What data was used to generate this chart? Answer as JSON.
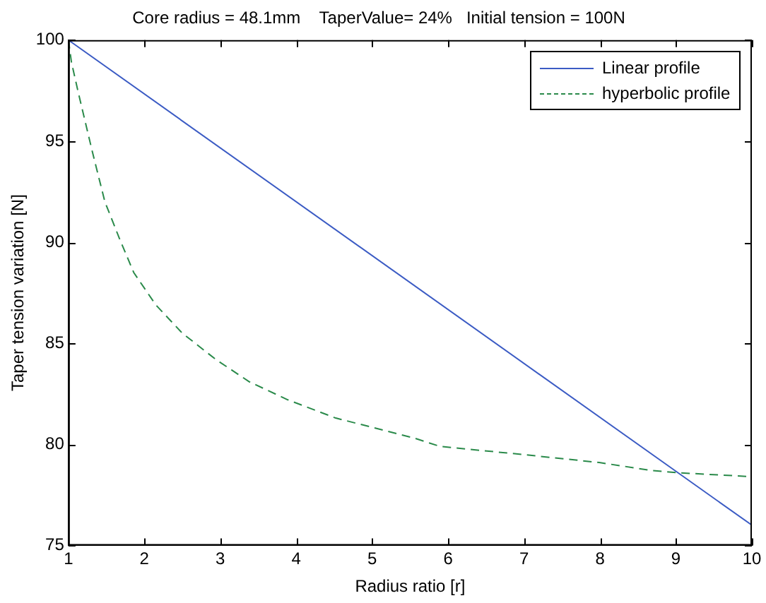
{
  "chart_data": {
    "type": "line",
    "title": "Core radius = 48.1mm    TaperValue= 24%   Initial tension = 100N",
    "xlabel": "Radius ratio [r]",
    "ylabel": "Taper tension variation [N]",
    "xlim": [
      1,
      10
    ],
    "xticks": [
      1,
      2,
      3,
      4,
      5,
      6,
      7,
      8,
      9,
      10
    ],
    "ylim": [
      75,
      100
    ],
    "yticks": [
      75,
      80,
      85,
      90,
      95,
      100
    ],
    "legend": "top right",
    "marker": "none",
    "series": [
      {
        "name": "Linear profile",
        "color": "#3b5bc4",
        "line_style": "solid",
        "x": [
          1,
          10
        ],
        "values": [
          100,
          76
        ]
      },
      {
        "name": "hyperbolic profile",
        "color": "#2a8a4a",
        "line_style": "dashed",
        "x": [
          1,
          1.04,
          1.13,
          1.32,
          1.48,
          1.67,
          1.86,
          2.15,
          2.5,
          2.94,
          3.38,
          3.89,
          4.52,
          5.15,
          5.56,
          5.89,
          6.97,
          7.99,
          8.69,
          9,
          10
        ],
        "values": [
          100,
          98.9,
          97.4,
          94.4,
          92.0,
          90.2,
          88.5,
          86.9,
          85.5,
          84.2,
          83.1,
          82.2,
          81.3,
          80.7,
          80.3,
          79.9,
          79.5,
          79.1,
          78.7,
          78.6,
          78.4
        ]
      }
    ]
  }
}
